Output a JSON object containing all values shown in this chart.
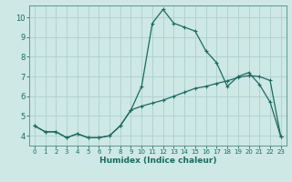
{
  "xlabel": "Humidex (Indice chaleur)",
  "background_color": "#cde8e5",
  "grid_color": "#add0cc",
  "line_color": "#1a6b60",
  "spine_color": "#5a9a90",
  "xlim": [
    -0.5,
    23.5
  ],
  "ylim": [
    3.5,
    10.6
  ],
  "xticks": [
    0,
    1,
    2,
    3,
    4,
    5,
    6,
    7,
    8,
    9,
    10,
    11,
    12,
    13,
    14,
    15,
    16,
    17,
    18,
    19,
    20,
    21,
    22,
    23
  ],
  "yticks": [
    4,
    5,
    6,
    7,
    8,
    9,
    10
  ],
  "line1_x": [
    0,
    1,
    2,
    3,
    4,
    5,
    6,
    7,
    8,
    9,
    10,
    11,
    12,
    13,
    14,
    15,
    16,
    17,
    18,
    19,
    20,
    21,
    22,
    23
  ],
  "line1_y": [
    4.5,
    4.2,
    4.2,
    3.9,
    4.1,
    3.9,
    3.9,
    4.0,
    4.5,
    5.3,
    6.5,
    9.7,
    10.4,
    9.7,
    9.5,
    9.3,
    8.3,
    7.7,
    6.5,
    7.0,
    7.2,
    6.6,
    5.7,
    3.95
  ],
  "line2_x": [
    0,
    1,
    2,
    3,
    4,
    5,
    6,
    7,
    8,
    9,
    10,
    11,
    12,
    13,
    14,
    15,
    16,
    17,
    18,
    19,
    20,
    21,
    22,
    23
  ],
  "line2_y": [
    4.5,
    4.2,
    4.2,
    3.9,
    4.1,
    3.9,
    3.9,
    4.0,
    4.5,
    5.3,
    5.5,
    5.65,
    5.8,
    6.0,
    6.2,
    6.4,
    6.5,
    6.65,
    6.78,
    6.95,
    7.05,
    7.0,
    6.8,
    3.95
  ]
}
